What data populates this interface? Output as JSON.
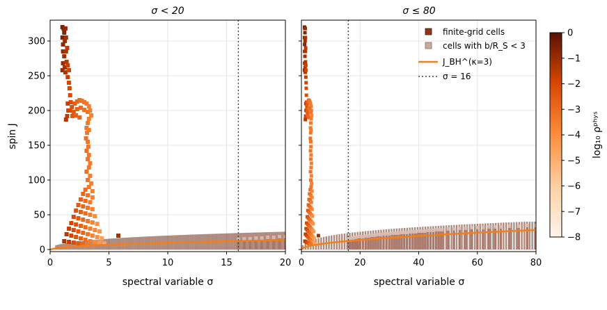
{
  "chart_data": [
    {
      "type": "scatter",
      "title": "σ < 20",
      "xlabel": "spectral variable σ",
      "ylabel": "spin J",
      "xlim": [
        0,
        20
      ],
      "ylim": [
        -3,
        330
      ],
      "xticks": [
        "0",
        "5",
        "10",
        "15",
        "20"
      ],
      "yticks": [
        "0",
        "50",
        "100",
        "150",
        "200",
        "250",
        "300"
      ],
      "grid": true,
      "vline_x": 16
    },
    {
      "type": "scatter",
      "title": "σ ≤ 80",
      "xlabel": "spectral variable σ",
      "ylabel": "",
      "xlim": [
        0,
        80
      ],
      "ylim": [
        -3,
        330
      ],
      "xticks": [
        "0",
        "20",
        "40",
        "60",
        "80"
      ],
      "grid": true,
      "vline_x": 16,
      "legend": {
        "placement": "top-right",
        "entries": [
          {
            "label": "finite-grid cells",
            "color": "#9a3214"
          },
          {
            "label": "cells with b/R_S < 3",
            "color": "#c9a8a0"
          },
          {
            "label": "J_BH^(κ=3)",
            "color": "#f07f1a"
          },
          {
            "label": "σ = 16",
            "color": "#444444"
          }
        ]
      }
    }
  ],
  "colorbar": {
    "label": "log₁₀ ρᵖʰʸˢ",
    "range": [
      -8,
      0
    ],
    "ticks": [
      "0",
      "−1",
      "−2",
      "−3",
      "−4",
      "−5",
      "−6",
      "−7",
      "−8"
    ]
  },
  "finite_grid_cells": [
    [
      1.05,
      320,
      -0.5
    ],
    [
      1.15,
      318,
      -0.6
    ],
    [
      1.2,
      312,
      -0.7
    ],
    [
      1.3,
      318,
      -0.9
    ],
    [
      1.05,
      305,
      -0.6
    ],
    [
      1.1,
      295,
      -0.8
    ],
    [
      1.25,
      300,
      -1.0
    ],
    [
      1.35,
      305,
      -1.2
    ],
    [
      1.1,
      285,
      -0.9
    ],
    [
      1.2,
      278,
      -1.1
    ],
    [
      1.35,
      285,
      -1.3
    ],
    [
      1.45,
      290,
      -1.5
    ],
    [
      1.1,
      268,
      -1.0
    ],
    [
      1.25,
      262,
      -1.2
    ],
    [
      1.4,
      270,
      -1.4
    ],
    [
      1.5,
      265,
      -1.7
    ],
    [
      1.05,
      258,
      -1.0
    ],
    [
      1.3,
      255,
      -1.3
    ],
    [
      1.6,
      258,
      -1.9
    ],
    [
      1.5,
      248,
      -1.7
    ],
    [
      1.6,
      240,
      -1.9
    ],
    [
      1.65,
      232,
      -2.0
    ],
    [
      1.7,
      222,
      -2.1
    ],
    [
      1.75,
      212,
      -2.2
    ],
    [
      1.5,
      210,
      -1.7
    ],
    [
      1.55,
      200,
      -1.8
    ],
    [
      1.45,
      192,
      -1.6
    ],
    [
      1.35,
      187,
      -1.4
    ],
    [
      1.7,
      200,
      -2.0
    ],
    [
      1.85,
      205,
      -2.3
    ],
    [
      2.0,
      198,
      -2.5
    ],
    [
      1.9,
      192,
      -2.4
    ],
    [
      2.1,
      210,
      -2.6
    ],
    [
      2.3,
      213,
      -2.8
    ],
    [
      2.5,
      215,
      -3.0
    ],
    [
      2.7,
      214,
      -3.2
    ],
    [
      2.9,
      212,
      -3.3
    ],
    [
      3.1,
      210,
      -3.4
    ],
    [
      3.3,
      206,
      -3.5
    ],
    [
      3.4,
      200,
      -3.6
    ],
    [
      2.3,
      202,
      -2.8
    ],
    [
      2.6,
      204,
      -3.0
    ],
    [
      2.9,
      201,
      -3.2
    ],
    [
      3.2,
      198,
      -3.3
    ],
    [
      2.2,
      193,
      -2.7
    ],
    [
      2.5,
      190,
      -2.9
    ],
    [
      3.5,
      193,
      -3.6
    ],
    [
      3.3,
      188,
      -3.5
    ],
    [
      3.2,
      182,
      -3.4
    ],
    [
      3.1,
      175,
      -3.3
    ],
    [
      3.15,
      168,
      -3.3
    ],
    [
      3.3,
      172,
      -3.5
    ],
    [
      3.05,
      160,
      -3.2
    ],
    [
      3.2,
      155,
      -3.3
    ],
    [
      3.25,
      148,
      -3.4
    ],
    [
      3.1,
      142,
      -3.2
    ],
    [
      3.3,
      136,
      -3.4
    ],
    [
      3.2,
      130,
      -3.3
    ],
    [
      3.4,
      124,
      -3.5
    ],
    [
      3.3,
      118,
      -3.4
    ],
    [
      3.1,
      112,
      -3.2
    ],
    [
      3.4,
      106,
      -3.5
    ],
    [
      3.2,
      100,
      -3.3
    ],
    [
      3.5,
      95,
      -3.6
    ],
    [
      3.3,
      90,
      -3.4
    ],
    [
      3.0,
      86,
      -3.1
    ],
    [
      3.6,
      84,
      -3.7
    ],
    [
      2.8,
      80,
      -2.9
    ],
    [
      3.2,
      78,
      -3.3
    ],
    [
      3.6,
      75,
      -3.7
    ],
    [
      2.6,
      72,
      -2.7
    ],
    [
      3.0,
      70,
      -3.1
    ],
    [
      3.4,
      68,
      -3.5
    ],
    [
      2.4,
      64,
      -2.5
    ],
    [
      2.8,
      62,
      -2.9
    ],
    [
      3.2,
      60,
      -3.3
    ],
    [
      3.6,
      58,
      -3.7
    ],
    [
      2.2,
      56,
      -2.3
    ],
    [
      2.6,
      54,
      -2.7
    ],
    [
      3.0,
      52,
      -3.1
    ],
    [
      3.4,
      50,
      -3.5
    ],
    [
      3.8,
      48,
      -3.9
    ],
    [
      2.0,
      47,
      -2.1
    ],
    [
      2.4,
      45,
      -2.5
    ],
    [
      2.8,
      43,
      -2.9
    ],
    [
      3.2,
      41,
      -3.3
    ],
    [
      3.6,
      39,
      -3.7
    ],
    [
      4.0,
      37,
      -4.1
    ],
    [
      1.8,
      38,
      -1.9
    ],
    [
      2.2,
      36,
      -2.3
    ],
    [
      2.6,
      34,
      -2.7
    ],
    [
      3.0,
      32,
      -3.1
    ],
    [
      3.4,
      30,
      -3.5
    ],
    [
      3.8,
      28,
      -3.9
    ],
    [
      4.2,
      26,
      -4.3
    ],
    [
      1.6,
      30,
      -1.7
    ],
    [
      2.0,
      28,
      -2.1
    ],
    [
      2.4,
      26,
      -2.5
    ],
    [
      2.8,
      24,
      -2.9
    ],
    [
      3.2,
      22,
      -3.3
    ],
    [
      3.6,
      20,
      -3.7
    ],
    [
      4.0,
      18,
      -4.1
    ],
    [
      4.4,
      16,
      -4.5
    ],
    [
      1.4,
      22,
      -1.5
    ],
    [
      1.8,
      20,
      -1.9
    ],
    [
      2.2,
      18,
      -2.3
    ],
    [
      2.6,
      16,
      -2.7
    ],
    [
      3.0,
      14,
      -3.1
    ],
    [
      3.4,
      12,
      -3.5
    ],
    [
      3.8,
      11,
      -3.9
    ],
    [
      4.2,
      10,
      -4.3
    ],
    [
      4.6,
      9,
      -4.7
    ],
    [
      1.2,
      12,
      -1.3
    ],
    [
      1.6,
      11,
      -1.7
    ],
    [
      2.0,
      10,
      -2.1
    ],
    [
      2.4,
      9,
      -2.5
    ],
    [
      2.8,
      8,
      -2.9
    ],
    [
      3.2,
      7,
      -3.3
    ],
    [
      5.8,
      20,
      -1.2
    ]
  ],
  "low_b_cells": [
    [
      16.0,
      14
    ],
    [
      16.5,
      15
    ],
    [
      17.0,
      15
    ],
    [
      17.5,
      16
    ],
    [
      18.0,
      16
    ],
    [
      18.5,
      17
    ],
    [
      19.0,
      17
    ],
    [
      19.5,
      18
    ],
    [
      20.0,
      18
    ],
    [
      21,
      18
    ],
    [
      22,
      19
    ],
    [
      23,
      19
    ],
    [
      24,
      20
    ],
    [
      25,
      20
    ],
    [
      26,
      21
    ],
    [
      27,
      21
    ],
    [
      28,
      22
    ],
    [
      29,
      22
    ],
    [
      30,
      22
    ],
    [
      31,
      23
    ],
    [
      32,
      23
    ],
    [
      33,
      23
    ],
    [
      34,
      24
    ],
    [
      35,
      24
    ],
    [
      36,
      24
    ],
    [
      37,
      25
    ],
    [
      38,
      25
    ],
    [
      39,
      25
    ],
    [
      40,
      26
    ],
    [
      41,
      26
    ],
    [
      42,
      26
    ],
    [
      43,
      27
    ],
    [
      44,
      27
    ],
    [
      45,
      27
    ],
    [
      46,
      28
    ],
    [
      47,
      28
    ],
    [
      48,
      28
    ],
    [
      50,
      29
    ],
    [
      52,
      29
    ],
    [
      54,
      30
    ],
    [
      56,
      30
    ],
    [
      58,
      31
    ],
    [
      60,
      31
    ],
    [
      62,
      31
    ],
    [
      64,
      32
    ],
    [
      66,
      32
    ],
    [
      68,
      32
    ],
    [
      71,
      33
    ],
    [
      74,
      33
    ],
    [
      77,
      34
    ],
    [
      80,
      34
    ]
  ],
  "bh_curve_x": [
    0.0,
    0.5,
    1,
    2,
    3,
    4,
    5,
    6,
    8,
    10,
    12,
    14,
    16,
    18,
    20,
    25,
    30,
    35,
    40,
    45,
    50,
    55,
    60,
    65,
    70,
    75,
    80
  ],
  "bh_curve_y": [
    0.0,
    2.0,
    3.0,
    4.3,
    5.3,
    6.1,
    6.8,
    7.5,
    8.7,
    9.7,
    10.6,
    11.5,
    12.3,
    13.0,
    13.7,
    15.4,
    16.9,
    18.3,
    19.6,
    20.8,
    22.0,
    23.1,
    24.2,
    25.2,
    26.2,
    27.2,
    28.1
  ]
}
